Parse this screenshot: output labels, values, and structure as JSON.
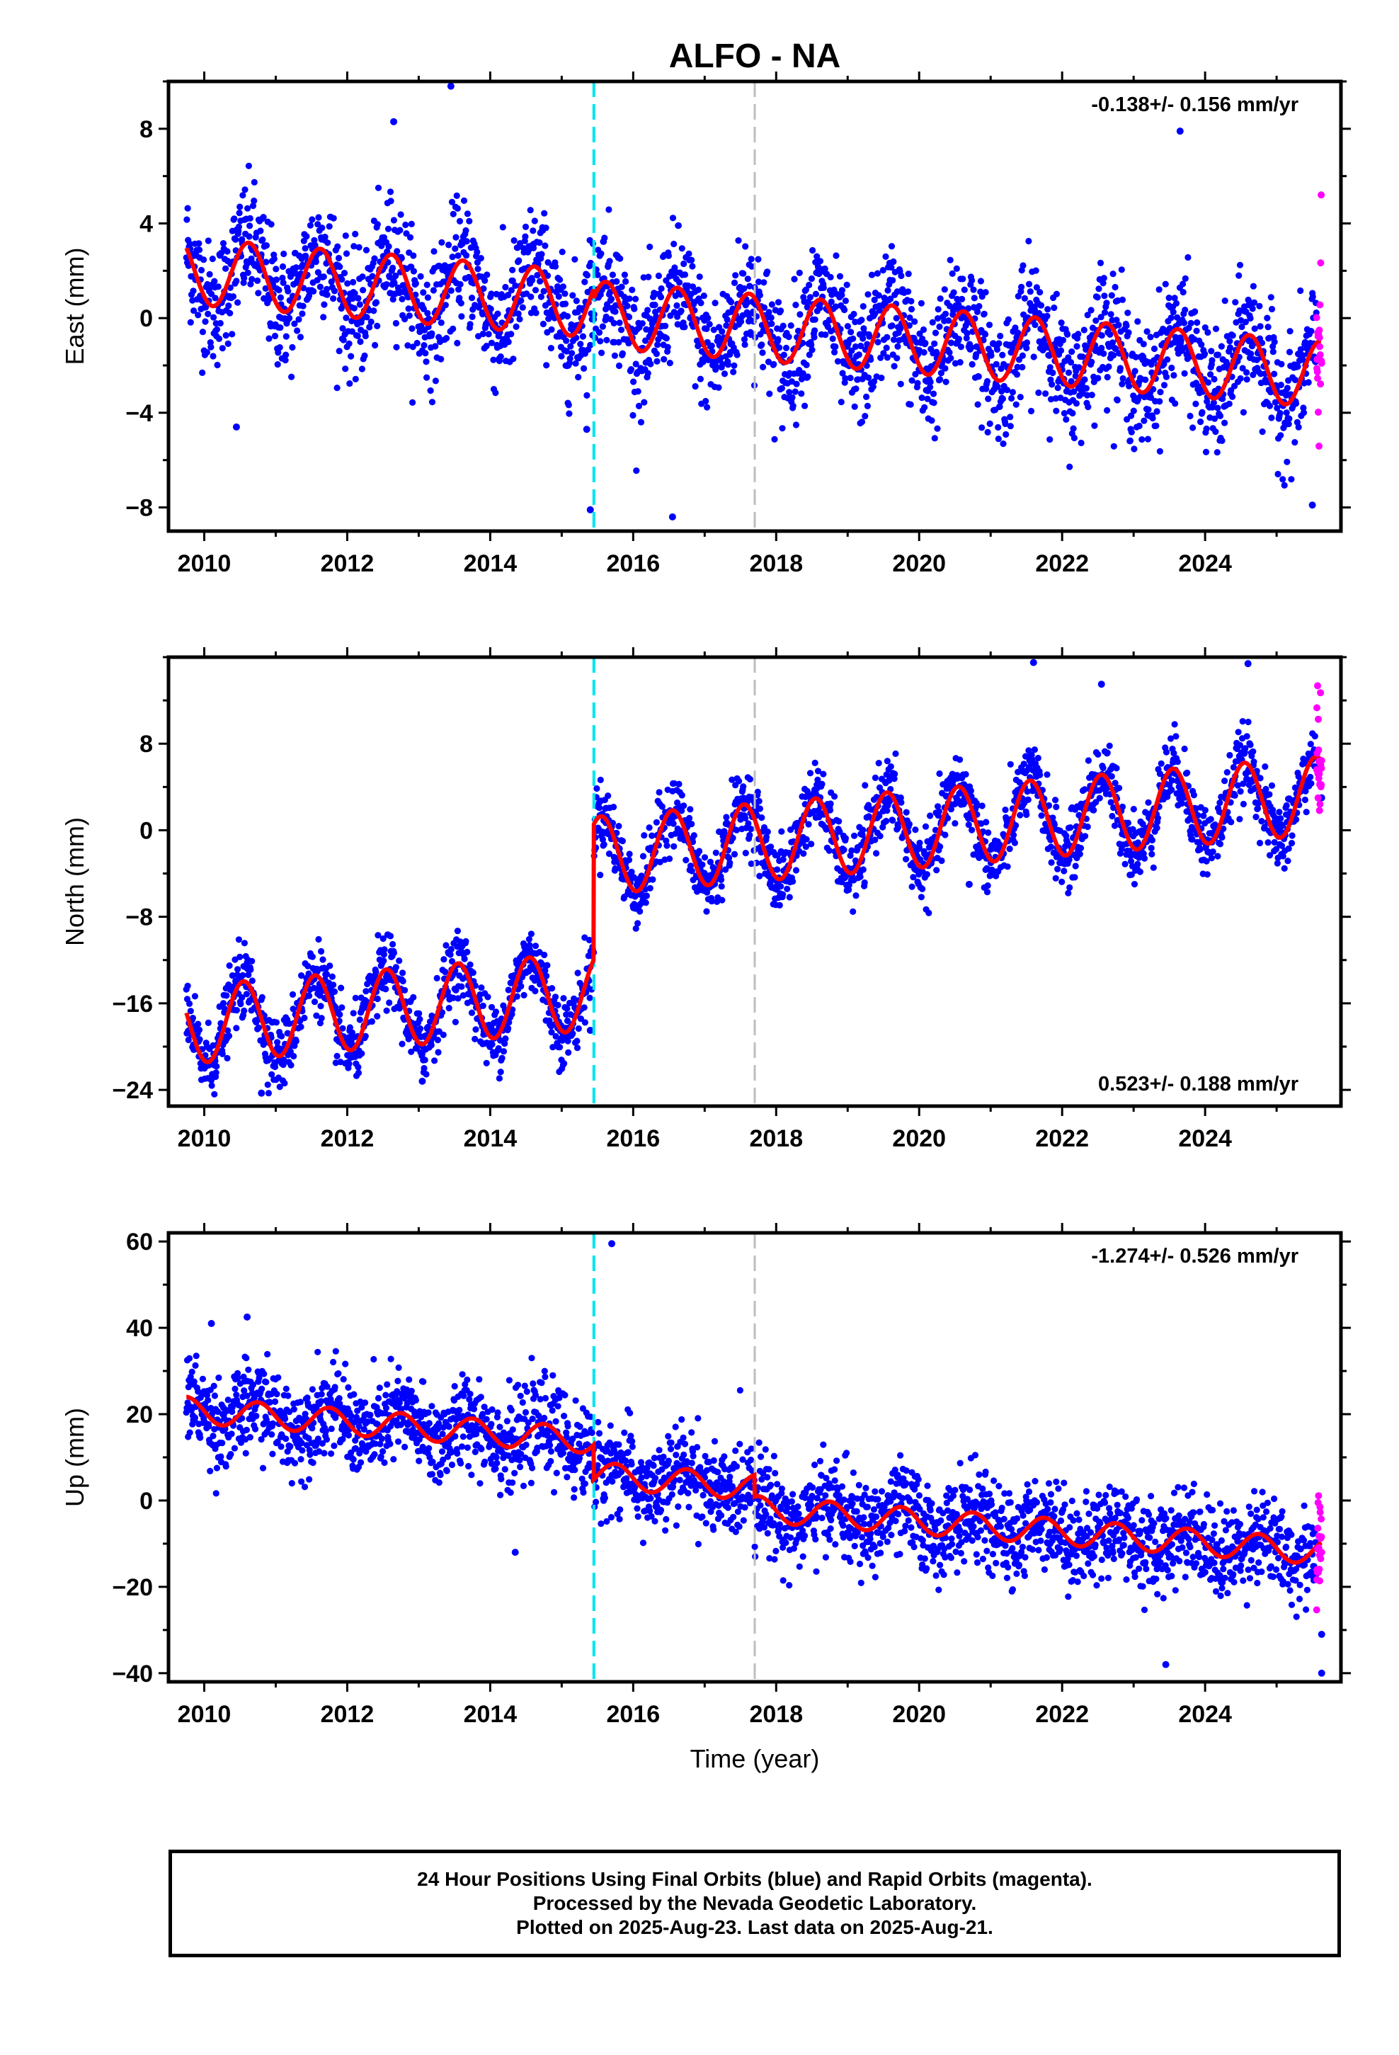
{
  "title": "ALFO - NA",
  "xlabel": "Time (year)",
  "footer": {
    "line1": "24 Hour Positions Using Final Orbits (blue) and Rapid Orbits (magenta).",
    "line2": "Processed by the Nevada Geodetic Laboratory.",
    "line3": "Plotted on 2025-Aug-23. Last data on 2025-Aug-21."
  },
  "colors": {
    "final": "#0000ff",
    "rapid": "#ff00ff",
    "model": "#ff0000",
    "offset_cyan": "#00e5ee",
    "offset_gray": "#bebebe"
  },
  "chart_data": [
    {
      "type": "scatter",
      "component": "east",
      "ylabel": "East (mm)",
      "xlim": [
        2009.5,
        2025.9
      ],
      "ylim": [
        -9,
        10
      ],
      "xticks": [
        2010,
        2012,
        2014,
        2016,
        2018,
        2020,
        2022,
        2024
      ],
      "yticks": [
        -8,
        -4,
        0,
        4,
        8
      ],
      "rate_label": "-0.138+/- 0.156 mm/yr",
      "rate_position": "top-right",
      "start": 2009.75,
      "end": 2025.63,
      "rapid_start": 2025.56,
      "model": {
        "intercept": 2.0,
        "slope": -0.25,
        "amplitude": 1.4,
        "phase_peak": 0.62,
        "steps": [
          {
            "year": 2015.45,
            "value": -0.4
          }
        ]
      },
      "scatter_sd": 1.3,
      "offsets": [
        {
          "year": 2015.45,
          "color": "cyan"
        },
        {
          "year": 2017.7,
          "color": "gray"
        }
      ],
      "outliers": [
        [
          2013.45,
          9.8
        ],
        [
          2012.65,
          8.3
        ],
        [
          2023.65,
          7.9
        ],
        [
          2016.55,
          -8.4
        ],
        [
          2015.4,
          -8.1
        ],
        [
          2025.5,
          -7.9
        ],
        [
          2015.35,
          -4.7
        ],
        [
          2010.45,
          -4.6
        ]
      ]
    },
    {
      "type": "scatter",
      "component": "north",
      "ylabel": "North (mm)",
      "xlim": [
        2009.5,
        2025.9
      ],
      "ylim": [
        -25.5,
        16
      ],
      "xticks": [
        2010,
        2012,
        2014,
        2016,
        2018,
        2020,
        2022,
        2024
      ],
      "yticks": [
        -24,
        -16,
        -8,
        0,
        8
      ],
      "rate_label": "0.523+/- 0.188 mm/yr",
      "rate_position": "bottom-right",
      "start": 2009.75,
      "end": 2025.63,
      "rapid_start": 2025.56,
      "model": {
        "intercept": -18.0,
        "slope": 0.55,
        "amplitude": 3.6,
        "phase_peak": 0.55,
        "steps": [
          {
            "year": 2015.45,
            "value": 12.5
          }
        ]
      },
      "scatter_sd": 1.6,
      "offsets": [
        {
          "year": 2015.45,
          "color": "cyan"
        },
        {
          "year": 2017.7,
          "color": "gray"
        }
      ],
      "outliers": [
        [
          2021.6,
          15.5
        ],
        [
          2024.6,
          15.4
        ],
        [
          2022.55,
          13.5
        ],
        [
          2010.8,
          -24.3
        ],
        [
          2013.05,
          -23.2
        ],
        [
          2015.4,
          -18.5
        ],
        [
          2020.7,
          -5.0
        ],
        [
          2025.63,
          3.0
        ]
      ]
    },
    {
      "type": "scatter",
      "component": "up",
      "ylabel": "Up (mm)",
      "xlabel": "Time (year)",
      "xlim": [
        2009.5,
        2025.9
      ],
      "ylim": [
        -42,
        62
      ],
      "xticks": [
        2010,
        2012,
        2014,
        2016,
        2018,
        2020,
        2022,
        2024
      ],
      "yticks": [
        -40,
        -20,
        0,
        20,
        40,
        60
      ],
      "rate_label": "-1.274+/- 0.526 mm/yr",
      "rate_position": "top-right",
      "start": 2009.75,
      "end": 2025.63,
      "rapid_start": 2025.56,
      "model": {
        "intercept": 21.0,
        "slope": -1.25,
        "amplitude": 3.0,
        "phase_peak": 0.75,
        "steps": [
          {
            "year": 2015.45,
            "value": -8.0
          },
          {
            "year": 2017.7,
            "value": -5.0
          }
        ]
      },
      "scatter_sd": 5.2,
      "offsets": [
        {
          "year": 2015.45,
          "color": "cyan"
        },
        {
          "year": 2017.7,
          "color": "gray"
        }
      ],
      "outliers": [
        [
          2015.7,
          59.5
        ],
        [
          2010.1,
          41.0
        ],
        [
          2010.6,
          42.5
        ],
        [
          2014.35,
          -12.0
        ],
        [
          2023.45,
          -38.0
        ],
        [
          2025.63,
          -40.0
        ],
        [
          2025.63,
          -31.0
        ]
      ]
    }
  ]
}
